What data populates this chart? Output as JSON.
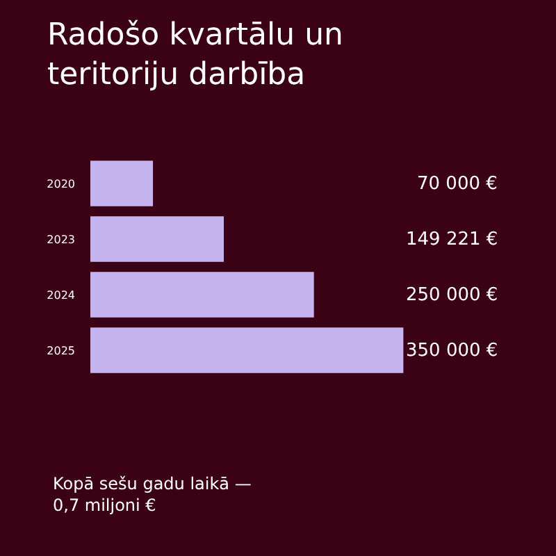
{
  "chart_data": {
    "type": "bar",
    "orientation": "horizontal",
    "title": "Radošo kvartālu un\nteritoriju darbība",
    "categories": [
      "2020",
      "2023",
      "2024",
      "2025"
    ],
    "values": [
      70000,
      149221,
      250000,
      350000
    ],
    "value_labels": [
      "70 000 €",
      "149 221 €",
      "250 000 €",
      "350 000 €"
    ],
    "color": "#c5b4ef",
    "annotations": [
      "Kopā sešu gadu laikā —\n0,7 miljoni €"
    ],
    "legend": false
  }
}
